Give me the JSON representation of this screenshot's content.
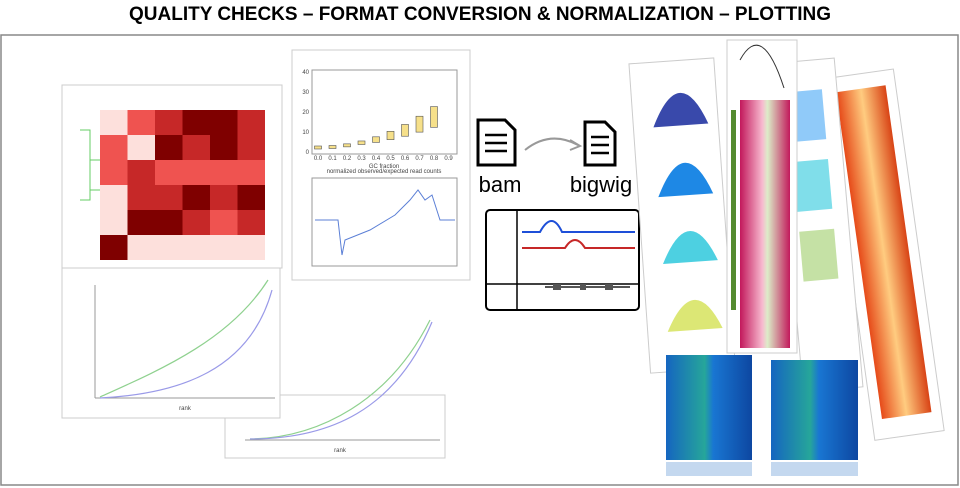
{
  "header": {
    "title": "QUALITY CHECKS – FORMAT CONVERSION & NORMALIZATION – PLOTTING"
  },
  "files": {
    "input": "bam",
    "output": "bigwig"
  },
  "gc_plot": {
    "x_label": "GC fraction",
    "xticks": [
      "0.0",
      "0.1",
      "0.2",
      "0.3",
      "0.4",
      "0.5",
      "0.6",
      "0.7",
      "0.8",
      "0.9"
    ],
    "yticks": [
      "0",
      "10",
      "20",
      "30",
      "40"
    ],
    "subtitle": "normalized observed/expected read counts"
  },
  "curves": {
    "x_label": "rank"
  }
}
